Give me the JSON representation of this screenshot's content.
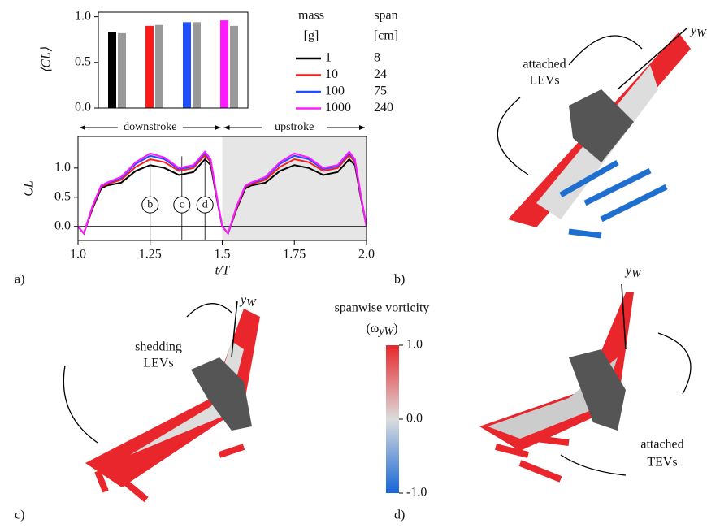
{
  "chart_data": [
    {
      "type": "bar",
      "ylabel": "⟨CL⟩",
      "categories": [
        null,
        null,
        null,
        null
      ],
      "series": [
        {
          "colors": [
            "#000000",
            "#ff1a1a",
            "#1f4fff",
            "#ff1aff"
          ],
          "values": [
            0.83,
            0.9,
            0.94,
            0.96
          ]
        },
        {
          "color": "#999999",
          "values": [
            0.82,
            0.91,
            0.94,
            0.9
          ]
        }
      ],
      "ylim": [
        0,
        1.05
      ],
      "yticks": [
        {
          "value": 0,
          "label": "0.0"
        },
        {
          "value": 0.5,
          "label": "0.5"
        },
        {
          "value": 1,
          "label": "1.0"
        }
      ]
    },
    {
      "type": "line",
      "xlabel": "t/T",
      "ylabel": "CL",
      "legend_headers": [
        "mass",
        "span",
        "[g]",
        "[cm]"
      ],
      "x": [
        1.0,
        1.02,
        1.05,
        1.08,
        1.1,
        1.15,
        1.2,
        1.25,
        1.3,
        1.35,
        1.4,
        1.44,
        1.46,
        1.48,
        1.5,
        1.52,
        1.55,
        1.58,
        1.6,
        1.65,
        1.7,
        1.75,
        1.8,
        1.85,
        1.9,
        1.94,
        1.96,
        1.98,
        2.0
      ],
      "series": [
        {
          "name": "1",
          "span": "8",
          "color": "#000000",
          "values": [
            0,
            -0.12,
            0.3,
            0.65,
            0.7,
            0.75,
            0.95,
            1.05,
            1.0,
            0.88,
            0.93,
            1.15,
            1.05,
            0.5,
            0,
            -0.12,
            0.3,
            0.65,
            0.7,
            0.75,
            0.95,
            1.05,
            1.0,
            0.88,
            0.93,
            1.15,
            1.05,
            0.5,
            0
          ]
        },
        {
          "name": "10",
          "span": "24",
          "color": "#ff1a1a",
          "values": [
            0,
            -0.12,
            0.32,
            0.68,
            0.72,
            0.8,
            1.02,
            1.15,
            1.1,
            0.95,
            1.0,
            1.22,
            1.1,
            0.52,
            0,
            -0.12,
            0.32,
            0.68,
            0.72,
            0.8,
            1.02,
            1.15,
            1.1,
            0.95,
            1.0,
            1.22,
            1.1,
            0.52,
            0
          ]
        },
        {
          "name": "100",
          "span": "75",
          "color": "#1f4fff",
          "values": [
            0,
            -0.12,
            0.34,
            0.69,
            0.74,
            0.83,
            1.07,
            1.21,
            1.15,
            0.98,
            1.03,
            1.26,
            1.13,
            0.54,
            0,
            -0.12,
            0.34,
            0.69,
            0.74,
            0.83,
            1.07,
            1.21,
            1.15,
            0.98,
            1.03,
            1.26,
            1.13,
            0.54,
            0
          ]
        },
        {
          "name": "1000",
          "span": "240",
          "color": "#ff1aff",
          "values": [
            0,
            -0.12,
            0.35,
            0.7,
            0.75,
            0.85,
            1.1,
            1.25,
            1.18,
            1.0,
            1.05,
            1.28,
            1.15,
            0.55,
            0,
            -0.12,
            0.35,
            0.7,
            0.75,
            0.85,
            1.1,
            1.25,
            1.18,
            1.0,
            1.05,
            1.28,
            1.15,
            0.55,
            0
          ]
        }
      ],
      "xlim": [
        1,
        2
      ],
      "ylim": [
        -0.24,
        1.54
      ],
      "xticks": [
        {
          "value": 1,
          "label": "1.0"
        },
        1.25,
        1.5,
        1.75,
        {
          "value": 2,
          "label": "2.0"
        }
      ],
      "yticks": [
        {
          "value": 0,
          "label": "0.0"
        },
        {
          "value": 0.5,
          "label": "0.5"
        },
        {
          "value": 1,
          "label": "1.0"
        }
      ],
      "phases": [
        {
          "label": "downstroke",
          "range": [
            1,
            1.5
          ]
        },
        {
          "label": "upstroke",
          "range": [
            1.5,
            2
          ]
        }
      ],
      "shaded": [
        1.5,
        2
      ],
      "markers": [
        {
          "x": 1.25,
          "label": "b"
        },
        {
          "x": 1.36,
          "label": "c"
        },
        {
          "x": 1.44,
          "label": "d"
        }
      ]
    }
  ],
  "renders": [
    {
      "labels": [
        "attached",
        "LEVs"
      ],
      "axis": [
        "y",
        "W"
      ]
    },
    {
      "labels": [
        "shedding",
        "LEVs"
      ],
      "axis": [
        "y",
        "W"
      ]
    },
    {
      "labels": [
        "attached",
        "TEVs"
      ],
      "axis": [
        "y",
        "W"
      ]
    }
  ],
  "colorbar": {
    "title": "spanwise vorticity",
    "symbol": [
      "(ω",
      "yW",
      ")"
    ],
    "lim": [
      -1,
      1
    ],
    "ticks": [
      {
        "value": 1,
        "label": "1.0"
      },
      {
        "value": 0,
        "label": "0.0"
      },
      {
        "value": -1,
        "label": "-1.0"
      }
    ]
  },
  "panel_labels": [
    "a)",
    "b)",
    "c)",
    "d)"
  ]
}
